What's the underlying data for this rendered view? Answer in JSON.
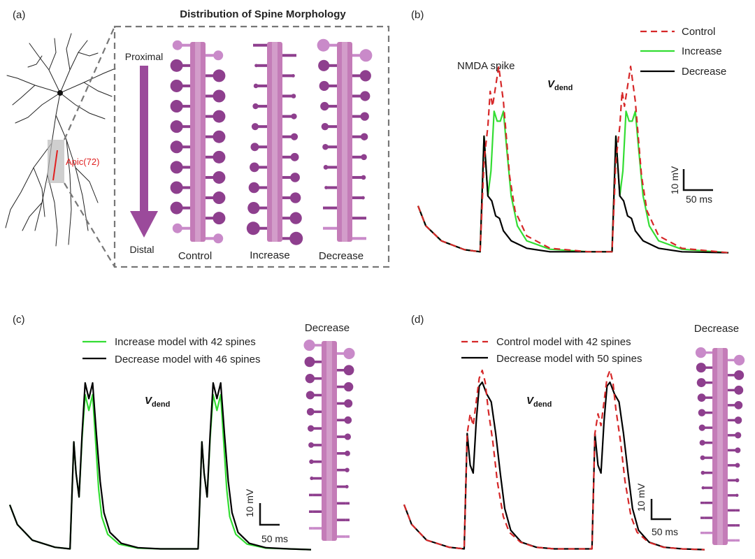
{
  "colors": {
    "control": "#d62728",
    "increase": "#33dd33",
    "decrease": "#000000",
    "spine_dark": "#8e3f8e",
    "spine_light": "#c98ac9",
    "dendrite": "#c47cb8",
    "arrow": "#9b4a9b",
    "neuron_highlight": "#e02020",
    "dashed_box": "#777777"
  },
  "panel_a": {
    "letter": "(a)",
    "title": "Distribution of Spine Morphology",
    "branch_label": "Apic(72)",
    "proximal_label": "Proximal",
    "distal_label": "Distal",
    "conditions": [
      "Control",
      "Increase",
      "Decrease"
    ]
  },
  "panel_b": {
    "letter": "(b)",
    "legend": [
      "Control",
      "Increase",
      "Decrease"
    ],
    "annotation": "NMDA spike",
    "vdend_main": "V",
    "vdend_sub": "dend",
    "scale_v": "10 mV",
    "scale_t": "50 ms"
  },
  "panel_c": {
    "letter": "(c)",
    "legend": [
      "Increase model with 42 spines",
      "Decrease model with 46 spines"
    ],
    "inset_label": "Decrease",
    "vdend_main": "V",
    "vdend_sub": "dend",
    "scale_v": "10 mV",
    "scale_t": "50 ms"
  },
  "panel_d": {
    "letter": "(d)",
    "legend": [
      "Control model with 42 spines",
      "Decrease model with 50 spines"
    ],
    "inset_label": "Decrease",
    "vdend_main": "V",
    "vdend_sub": "dend",
    "scale_v": "10 mV",
    "scale_t": "50 ms"
  },
  "chart_data": [
    {
      "type": "line",
      "panel": "b",
      "title": "",
      "xlabel": "",
      "ylabel": "",
      "x_unit": "ms",
      "y_unit": "mV",
      "scale_bar": {
        "voltage_mV": 10,
        "time_ms": 50
      },
      "series": [
        {
          "name": "Control",
          "style": "dashed",
          "x": [
            0,
            10,
            30,
            60,
            80,
            85,
            90,
            93,
            96,
            100,
            104,
            110,
            118,
            125,
            140,
            170,
            220,
            250,
            255,
            260,
            263,
            266,
            270,
            274,
            280,
            288,
            295,
            310,
            340,
            400
          ],
          "y": [
            10,
            6,
            3,
            1.2,
            0.8,
            19,
            26,
            33,
            30,
            34,
            38,
            31,
            16,
            9,
            4,
            1.5,
            0.8,
            0.8,
            19,
            26,
            33,
            30,
            34,
            38,
            31,
            16,
            9,
            4,
            1.5,
            0.6
          ]
        },
        {
          "name": "Increase",
          "style": "solid",
          "x": [
            0,
            10,
            30,
            60,
            80,
            85,
            90,
            94,
            98,
            102,
            106,
            110,
            114,
            120,
            128,
            140,
            170,
            220,
            250,
            255,
            260,
            264,
            268,
            272,
            276,
            280,
            284,
            290,
            298,
            310,
            340,
            400
          ],
          "y": [
            10,
            6,
            3,
            1.2,
            0.8,
            24,
            12,
            17,
            29,
            27,
            27,
            29,
            22,
            12,
            6,
            3,
            1.3,
            0.8,
            0.8,
            24,
            12,
            17,
            29,
            27,
            27,
            29,
            22,
            12,
            6,
            3,
            1.3,
            0.6
          ]
        },
        {
          "name": "Decrease",
          "style": "solid",
          "x": [
            0,
            10,
            30,
            60,
            80,
            85,
            90,
            95,
            100,
            105,
            110,
            120,
            140,
            170,
            220,
            250,
            255,
            260,
            265,
            270,
            275,
            280,
            290,
            310,
            340,
            400
          ],
          "y": [
            10,
            6,
            3,
            1.2,
            0.8,
            24,
            12,
            11,
            8,
            7.5,
            5,
            3,
            1.5,
            0.8,
            0.8,
            0.8,
            24,
            12,
            11,
            8,
            7.5,
            5,
            3,
            1.5,
            0.8,
            0.6
          ]
        }
      ]
    },
    {
      "type": "line",
      "panel": "c",
      "title": "",
      "xlabel": "",
      "ylabel": "",
      "x_unit": "ms",
      "y_unit": "mV",
      "scale_bar": {
        "voltage_mV": 10,
        "time_ms": 50
      },
      "series": [
        {
          "name": "Increase model with 42 spines",
          "style": "solid",
          "x": [
            0,
            10,
            30,
            60,
            80,
            85,
            88,
            92,
            96,
            100,
            105,
            110,
            114,
            118,
            122,
            130,
            145,
            170,
            200,
            230,
            250,
            255,
            258,
            262,
            266,
            270,
            275,
            280,
            284,
            288,
            292,
            300,
            315,
            340,
            370,
            400
          ],
          "y": [
            12,
            7,
            3,
            1.2,
            0.8,
            28,
            20,
            14,
            29,
            40,
            36,
            40,
            28,
            16,
            9,
            4.5,
            2,
            1,
            0.8,
            0.8,
            0.8,
            28,
            20,
            14,
            29,
            40,
            36,
            40,
            28,
            16,
            9,
            4.5,
            2,
            1,
            0.8,
            0.6
          ]
        },
        {
          "name": "Decrease model with 46 spines",
          "style": "solid",
          "x": [
            0,
            10,
            30,
            60,
            80,
            85,
            88,
            92,
            96,
            100,
            105,
            110,
            115,
            120,
            125,
            133,
            148,
            170,
            200,
            230,
            250,
            255,
            258,
            262,
            266,
            270,
            275,
            280,
            285,
            290,
            295,
            303,
            318,
            340,
            370,
            400
          ],
          "y": [
            12,
            7,
            3,
            1.2,
            0.8,
            28,
            20,
            14,
            30,
            43,
            39,
            43,
            30,
            18,
            10,
            5,
            2.2,
            1.1,
            0.8,
            0.8,
            0.8,
            28,
            20,
            14,
            30,
            43,
            39,
            43,
            30,
            18,
            10,
            5,
            2.2,
            1.1,
            0.8,
            0.6
          ]
        }
      ]
    },
    {
      "type": "line",
      "panel": "d",
      "title": "",
      "xlabel": "",
      "ylabel": "",
      "x_unit": "ms",
      "y_unit": "mV",
      "scale_bar": {
        "voltage_mV": 10,
        "time_ms": 50
      },
      "series": [
        {
          "name": "Control model with 42 spines",
          "style": "dashed",
          "x": [
            0,
            10,
            30,
            60,
            80,
            84,
            88,
            92,
            96,
            100,
            104,
            108,
            112,
            118,
            124,
            132,
            140,
            155,
            175,
            200,
            230,
            250,
            254,
            258,
            262,
            266,
            270,
            274,
            278,
            282,
            288,
            294,
            302,
            310,
            325,
            345,
            370,
            400
          ],
          "y": [
            12,
            7,
            3,
            1.2,
            0.8,
            30,
            35,
            32,
            38,
            44,
            46,
            43,
            36,
            28,
            18,
            9,
            5,
            2.5,
            1.2,
            0.8,
            0.8,
            0.8,
            30,
            35,
            32,
            38,
            44,
            46,
            43,
            36,
            28,
            18,
            9,
            5,
            2.5,
            1.2,
            0.8,
            0.6
          ]
        },
        {
          "name": "Decrease model with 50 spines",
          "style": "solid",
          "x": [
            0,
            10,
            30,
            60,
            80,
            84,
            88,
            92,
            96,
            100,
            104,
            110,
            116,
            122,
            128,
            134,
            142,
            156,
            176,
            200,
            230,
            250,
            254,
            258,
            262,
            266,
            270,
            274,
            280,
            286,
            292,
            298,
            304,
            312,
            326,
            346,
            370,
            400
          ],
          "y": [
            12,
            7,
            3,
            1.2,
            0.8,
            30,
            22,
            20,
            33,
            42,
            43,
            40,
            38,
            30,
            20,
            11,
            5.5,
            2.5,
            1.2,
            0.8,
            0.8,
            0.8,
            30,
            22,
            20,
            33,
            42,
            43,
            40,
            38,
            30,
            20,
            11,
            5.5,
            2.5,
            1.2,
            0.8,
            0.6
          ]
        }
      ]
    }
  ]
}
